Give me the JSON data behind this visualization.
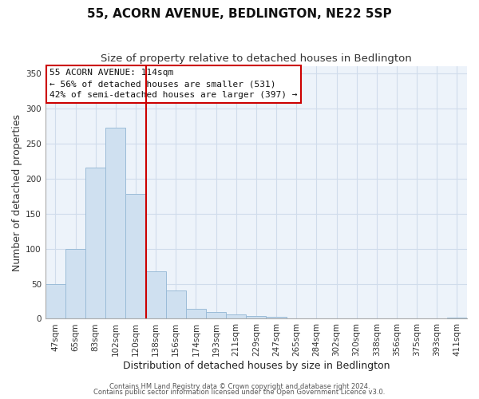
{
  "title": "55, ACORN AVENUE, BEDLINGTON, NE22 5SP",
  "subtitle": "Size of property relative to detached houses in Bedlington",
  "xlabel": "Distribution of detached houses by size in Bedlington",
  "ylabel": "Number of detached properties",
  "categories": [
    "47sqm",
    "65sqm",
    "83sqm",
    "102sqm",
    "120sqm",
    "138sqm",
    "156sqm",
    "174sqm",
    "193sqm",
    "211sqm",
    "229sqm",
    "247sqm",
    "265sqm",
    "284sqm",
    "302sqm",
    "320sqm",
    "338sqm",
    "356sqm",
    "375sqm",
    "393sqm",
    "411sqm"
  ],
  "values": [
    49,
    100,
    215,
    272,
    178,
    68,
    40,
    14,
    10,
    6,
    4,
    3,
    1,
    1,
    0,
    1,
    0,
    0,
    0,
    0,
    2
  ],
  "bar_color": "#cfe0f0",
  "bar_edge_color": "#9bbcd8",
  "vline_x_index": 4,
  "vline_color": "#cc0000",
  "ylim": [
    0,
    360
  ],
  "yticks": [
    0,
    50,
    100,
    150,
    200,
    250,
    300,
    350
  ],
  "annotation_box_text_line1": "55 ACORN AVENUE: 114sqm",
  "annotation_box_text_line2": "← 56% of detached houses are smaller (531)",
  "annotation_box_text_line3": "42% of semi-detached houses are larger (397) →",
  "annotation_box_color": "#ffffff",
  "annotation_box_edge_color": "#cc0000",
  "footer_line1": "Contains HM Land Registry data © Crown copyright and database right 2024.",
  "footer_line2": "Contains public sector information licensed under the Open Government Licence v3.0.",
  "title_fontsize": 11,
  "subtitle_fontsize": 9.5,
  "xlabel_fontsize": 9,
  "ylabel_fontsize": 9,
  "tick_fontsize": 7.5,
  "annotation_fontsize": 8,
  "footer_fontsize": 6,
  "background_color": "#ffffff",
  "grid_color": "#d0dceb",
  "axis_bg_color": "#edf3fa"
}
